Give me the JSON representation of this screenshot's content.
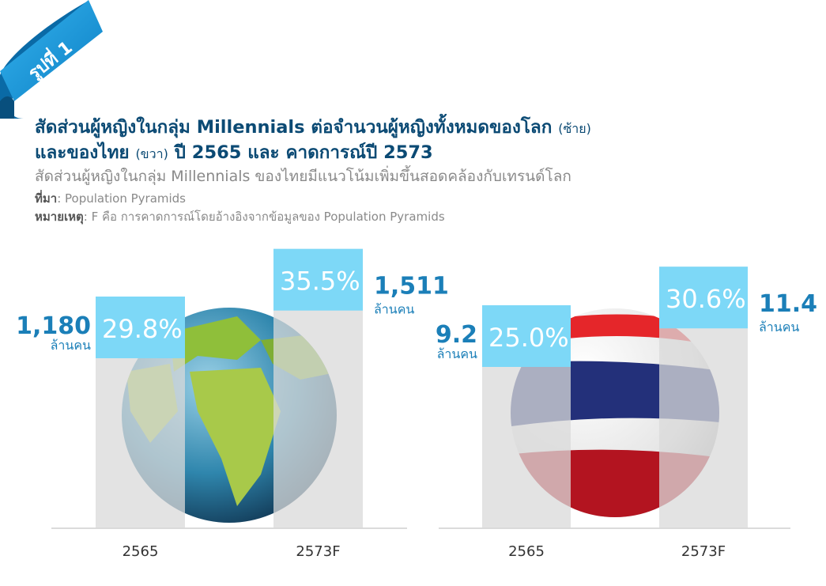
{
  "badge": "รูปที่ 1",
  "title": {
    "line1_main": "สัดส่วนผู้หญิงในกลุ่ม Millennials ต่อจำนวนผู้หญิงทั้งหมดของโลก",
    "line1_paren": "(ซ้าย)",
    "line2_main": "และของไทย",
    "line2_paren": "(ขวา)",
    "line2_rest": "ปี 2565 และ คาดการณ์ปี 2573"
  },
  "subtitle": "สัดส่วนผู้หญิงในกลุ่ม Millennials ของไทยมีแนวโน้มเพิ่มขึ้นสอดคล้องกับเทรนด์โลก",
  "source": {
    "label": "ที่มา",
    "text": ": Population Pyramids"
  },
  "remark": {
    "label": "หมายเหตุ",
    "text": ": F คือ การคาดการณ์โดยอ้างอิงจากข้อมูลของ Population Pyramids"
  },
  "colors": {
    "accent": "#7dd8f7",
    "bar": "#e3e3e3",
    "label": "#1b7fb8",
    "title": "#0b4a74",
    "ribbon": "#1596d8"
  },
  "chart_data": [
    {
      "type": "bar",
      "panel": "world",
      "categories": [
        "2565",
        "2573F"
      ],
      "unit": "ล้านคน",
      "values": [
        1180,
        1511
      ],
      "value_labels": [
        "1,180",
        "1,511"
      ],
      "share_percent": [
        29.8,
        35.5
      ]
    },
    {
      "type": "bar",
      "panel": "thailand",
      "categories": [
        "2565",
        "2573F"
      ],
      "unit": "ล้านคน",
      "values": [
        9.2,
        11.4
      ],
      "value_labels": [
        "9.2",
        "11.4"
      ],
      "share_percent": [
        25.0,
        30.6
      ]
    }
  ]
}
